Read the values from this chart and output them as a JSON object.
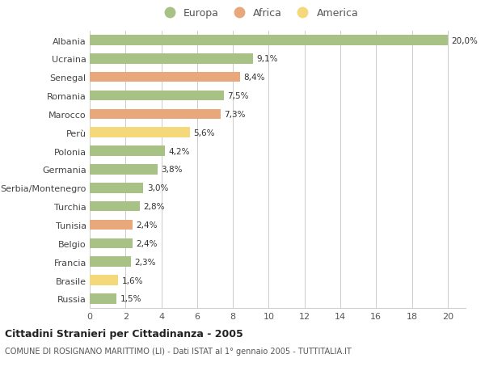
{
  "countries": [
    "Albania",
    "Ucraina",
    "Senegal",
    "Romania",
    "Marocco",
    "Perù",
    "Polonia",
    "Germania",
    "Serbia/Montenegro",
    "Turchia",
    "Tunisia",
    "Belgio",
    "Francia",
    "Brasile",
    "Russia"
  ],
  "values": [
    20.0,
    9.1,
    8.4,
    7.5,
    7.3,
    5.6,
    4.2,
    3.8,
    3.0,
    2.8,
    2.4,
    2.4,
    2.3,
    1.6,
    1.5
  ],
  "labels": [
    "20,0%",
    "9,1%",
    "8,4%",
    "7,5%",
    "7,3%",
    "5,6%",
    "4,2%",
    "3,8%",
    "3,0%",
    "2,8%",
    "2,4%",
    "2,4%",
    "2,3%",
    "1,6%",
    "1,5%"
  ],
  "continents": [
    "Europa",
    "Europa",
    "Africa",
    "Europa",
    "Africa",
    "America",
    "Europa",
    "Europa",
    "Europa",
    "Europa",
    "Africa",
    "Europa",
    "Europa",
    "America",
    "Europa"
  ],
  "colors": {
    "Europa": "#a8c185",
    "Africa": "#e8a87c",
    "America": "#f5d87a"
  },
  "legend_entries": [
    "Europa",
    "Africa",
    "America"
  ],
  "title1": "Cittadini Stranieri per Cittadinanza - 2005",
  "title2": "COMUNE DI ROSIGNANO MARITTIMO (LI) - Dati ISTAT al 1° gennaio 2005 - TUTTITALIA.IT",
  "xlim": [
    0,
    21
  ],
  "xticks": [
    0,
    2,
    4,
    6,
    8,
    10,
    12,
    14,
    16,
    18,
    20
  ],
  "background_color": "#ffffff",
  "grid_color": "#cccccc",
  "bar_height": 0.55
}
